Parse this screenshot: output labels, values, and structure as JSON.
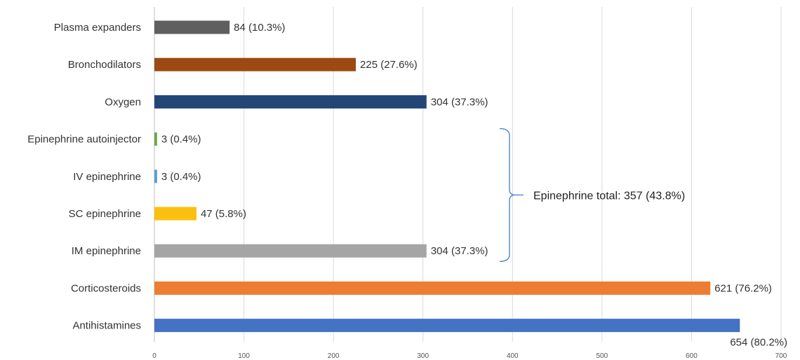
{
  "chart_data": {
    "type": "bar",
    "orientation": "horizontal",
    "categories": [
      "Plasma expanders",
      "Bronchodilators",
      "Oxygen",
      "Epinephrine autoinjector",
      "IV epinephrine",
      "SC epinephrine",
      "IM epinephrine",
      "Corticosteroids",
      "Antihistamines"
    ],
    "values": [
      84,
      225,
      304,
      3,
      3,
      47,
      304,
      621,
      654
    ],
    "data_labels": [
      "84 (10.3%)",
      "225 (27.6%)",
      "304 (37.3%)",
      "3 (0.4%)",
      "3 (0.4%)",
      "47 (5.8%)",
      "304 (37.3%)",
      "621 (76.2%)",
      "654 (80.2%)"
    ],
    "colors": [
      "#5f5f5f",
      "#9c4912",
      "#244677",
      "#6aaa43",
      "#5b9bd5",
      "#fbbf0f",
      "#a5a5a5",
      "#ed7d31",
      "#4472c4"
    ],
    "xlim": [
      0,
      700
    ],
    "xticks": [
      "0",
      "100",
      "200",
      "300",
      "400",
      "500",
      "600",
      "700"
    ],
    "grid": "vertical",
    "annotation": {
      "text": "Epinephrine total: 357 (43.8%)",
      "brace_color": "#5b8fd0",
      "spans": [
        "Epinephrine autoinjector",
        "IM epinephrine"
      ]
    },
    "title": "",
    "xlabel": "",
    "ylabel": ""
  }
}
